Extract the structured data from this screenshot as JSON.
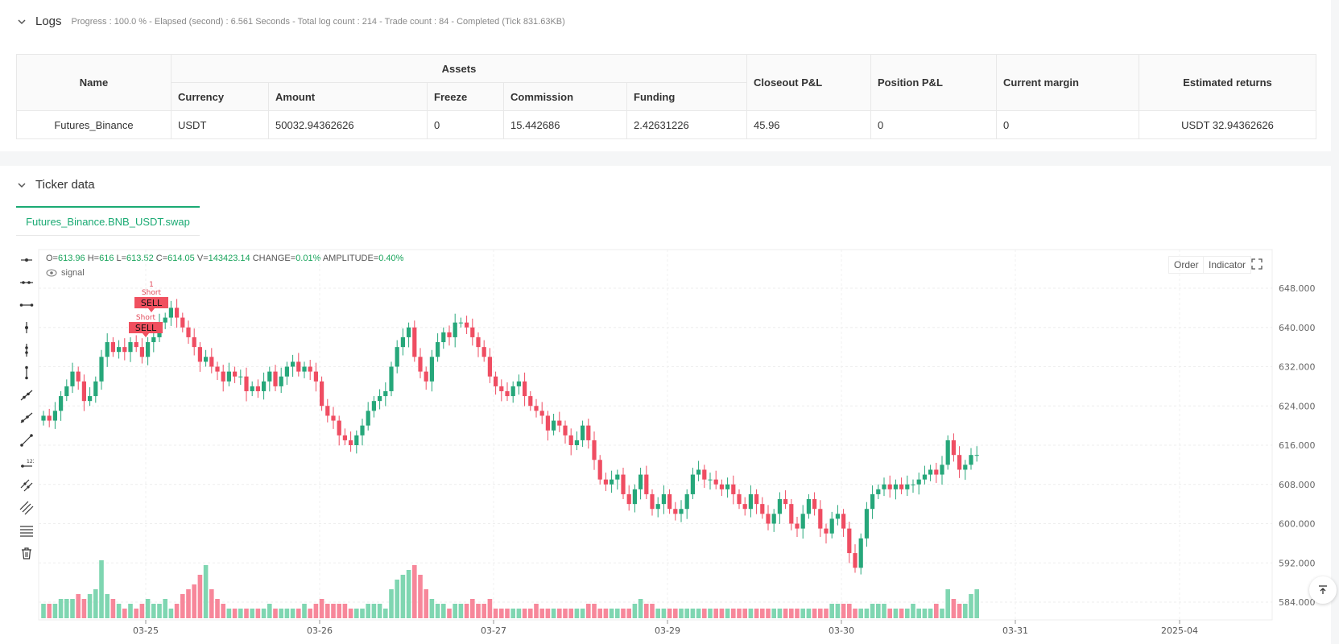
{
  "logs": {
    "title": "Logs",
    "status": "Progress : 100.0 % - Elapsed (second) : 6.561  Seconds - Total log count : 214 - Trade count : 84 - Completed (Tick 831.63KB)"
  },
  "assets_table": {
    "group_header": "Assets",
    "headers": [
      "Name",
      "Currency",
      "Amount",
      "Freeze",
      "Commission",
      "Funding",
      "Closeout P&L",
      "Position P&L",
      "Current margin",
      "Estimated returns"
    ],
    "row": {
      "name": "Futures_Binance",
      "currency": "USDT",
      "amount": "50032.94362626",
      "freeze": "0",
      "commission": "15.442686",
      "funding": "2.42631226",
      "closeout_pl": "45.96",
      "position_pl": "0",
      "current_margin": "0",
      "estimated_returns": "USDT 32.94362626"
    }
  },
  "ticker": {
    "title": "Ticker data",
    "tab_label": "Futures_Binance.BNB_USDT.swap",
    "ohlc": {
      "o_label": "O=",
      "o": "613.96",
      "h_label": "H=",
      "h": "616",
      "l_label": "L=",
      "l": "613.52",
      "c_label": "C=",
      "c": "614.05",
      "v_label": "V=",
      "v": "143423.14",
      "change_label": "CHANGE=",
      "change": "0.01%",
      "amp_label": "AMPLITUDE=",
      "amp": "0.40%"
    },
    "signal_label": "signal",
    "order_btn": "Order",
    "indicator_btn": "Indicator"
  },
  "chart_data": {
    "type": "candlestick",
    "y_ticks": [
      "648.000",
      "640.000",
      "632.000",
      "624.000",
      "616.000",
      "608.000",
      "600.000",
      "592.000",
      "584.000"
    ],
    "x_ticks": [
      "03-25",
      "03-26",
      "03-27",
      "03-29",
      "03-30",
      "03-31",
      "2025-04"
    ],
    "ylim": [
      580,
      654
    ],
    "closes": [
      622,
      621,
      623,
      626,
      628,
      631,
      629,
      625,
      626,
      629,
      634,
      637,
      635,
      636,
      635,
      637,
      636,
      634,
      637,
      638,
      641,
      642,
      644,
      642,
      640,
      638,
      636,
      633,
      634,
      632,
      631,
      629,
      631,
      630,
      630,
      627,
      628,
      627,
      629,
      631,
      628,
      630,
      632,
      633,
      631,
      632,
      631,
      629,
      624,
      622,
      621,
      618,
      617,
      616,
      618,
      620,
      623,
      625,
      626,
      627,
      632,
      636,
      638,
      640,
      634,
      631,
      629,
      634,
      637,
      639,
      638,
      641,
      641,
      640,
      638,
      636,
      634,
      630,
      628,
      627,
      626,
      628,
      629,
      626,
      624,
      623,
      622,
      619,
      621,
      620,
      618,
      616,
      617,
      620,
      617,
      613,
      609,
      608,
      609,
      610,
      606,
      604,
      607,
      610,
      606,
      603,
      604,
      606,
      603,
      602,
      603,
      606,
      610,
      611,
      609,
      609,
      608,
      607,
      608,
      606,
      604,
      603,
      606,
      604,
      602,
      600,
      602,
      605,
      604,
      600,
      599,
      602,
      605,
      603,
      599,
      598,
      601,
      602,
      599,
      594,
      591,
      597,
      603,
      606,
      607,
      608,
      607,
      608,
      607,
      608,
      608,
      609,
      610,
      611,
      610,
      612,
      617,
      614,
      611,
      612,
      614,
      614
    ],
    "volumes": [
      3,
      3,
      3,
      4,
      4,
      4,
      5,
      4,
      5,
      6,
      12,
      5,
      4,
      3,
      2,
      3,
      2,
      3,
      4,
      3,
      3,
      4,
      2,
      3,
      5,
      6,
      7,
      9,
      11,
      6,
      4,
      3,
      2,
      2,
      2,
      2,
      2,
      2,
      2,
      3,
      2,
      2,
      2,
      2,
      2,
      3,
      2,
      3,
      4,
      3,
      3,
      3,
      3,
      2,
      2,
      2,
      3,
      3,
      3,
      2,
      6,
      8,
      9,
      10,
      11,
      9,
      6,
      4,
      3,
      3,
      2,
      3,
      3,
      3,
      4,
      3,
      3,
      4,
      2,
      2,
      2,
      2,
      2,
      2,
      2,
      3,
      2,
      2,
      2,
      2,
      2,
      2,
      2,
      2,
      3,
      3,
      2,
      2,
      2,
      2,
      2,
      2,
      3,
      4,
      3,
      3,
      2,
      2,
      2,
      2,
      2,
      2,
      2,
      2,
      2,
      2,
      2,
      2,
      2,
      2,
      2,
      2,
      2,
      2,
      2,
      2,
      2,
      2,
      2,
      2,
      2,
      2,
      2,
      2,
      2,
      2,
      3,
      3,
      3,
      3,
      2,
      2,
      2,
      3,
      3,
      3,
      2,
      2,
      2,
      2,
      3,
      2,
      2,
      2,
      3,
      2,
      6,
      4,
      3,
      3,
      5,
      6
    ],
    "annotations": [
      {
        "label": "SELL",
        "note": "Short",
        "count": "1"
      },
      {
        "label": "SELL",
        "note": "Short",
        "count": ""
      }
    ]
  }
}
